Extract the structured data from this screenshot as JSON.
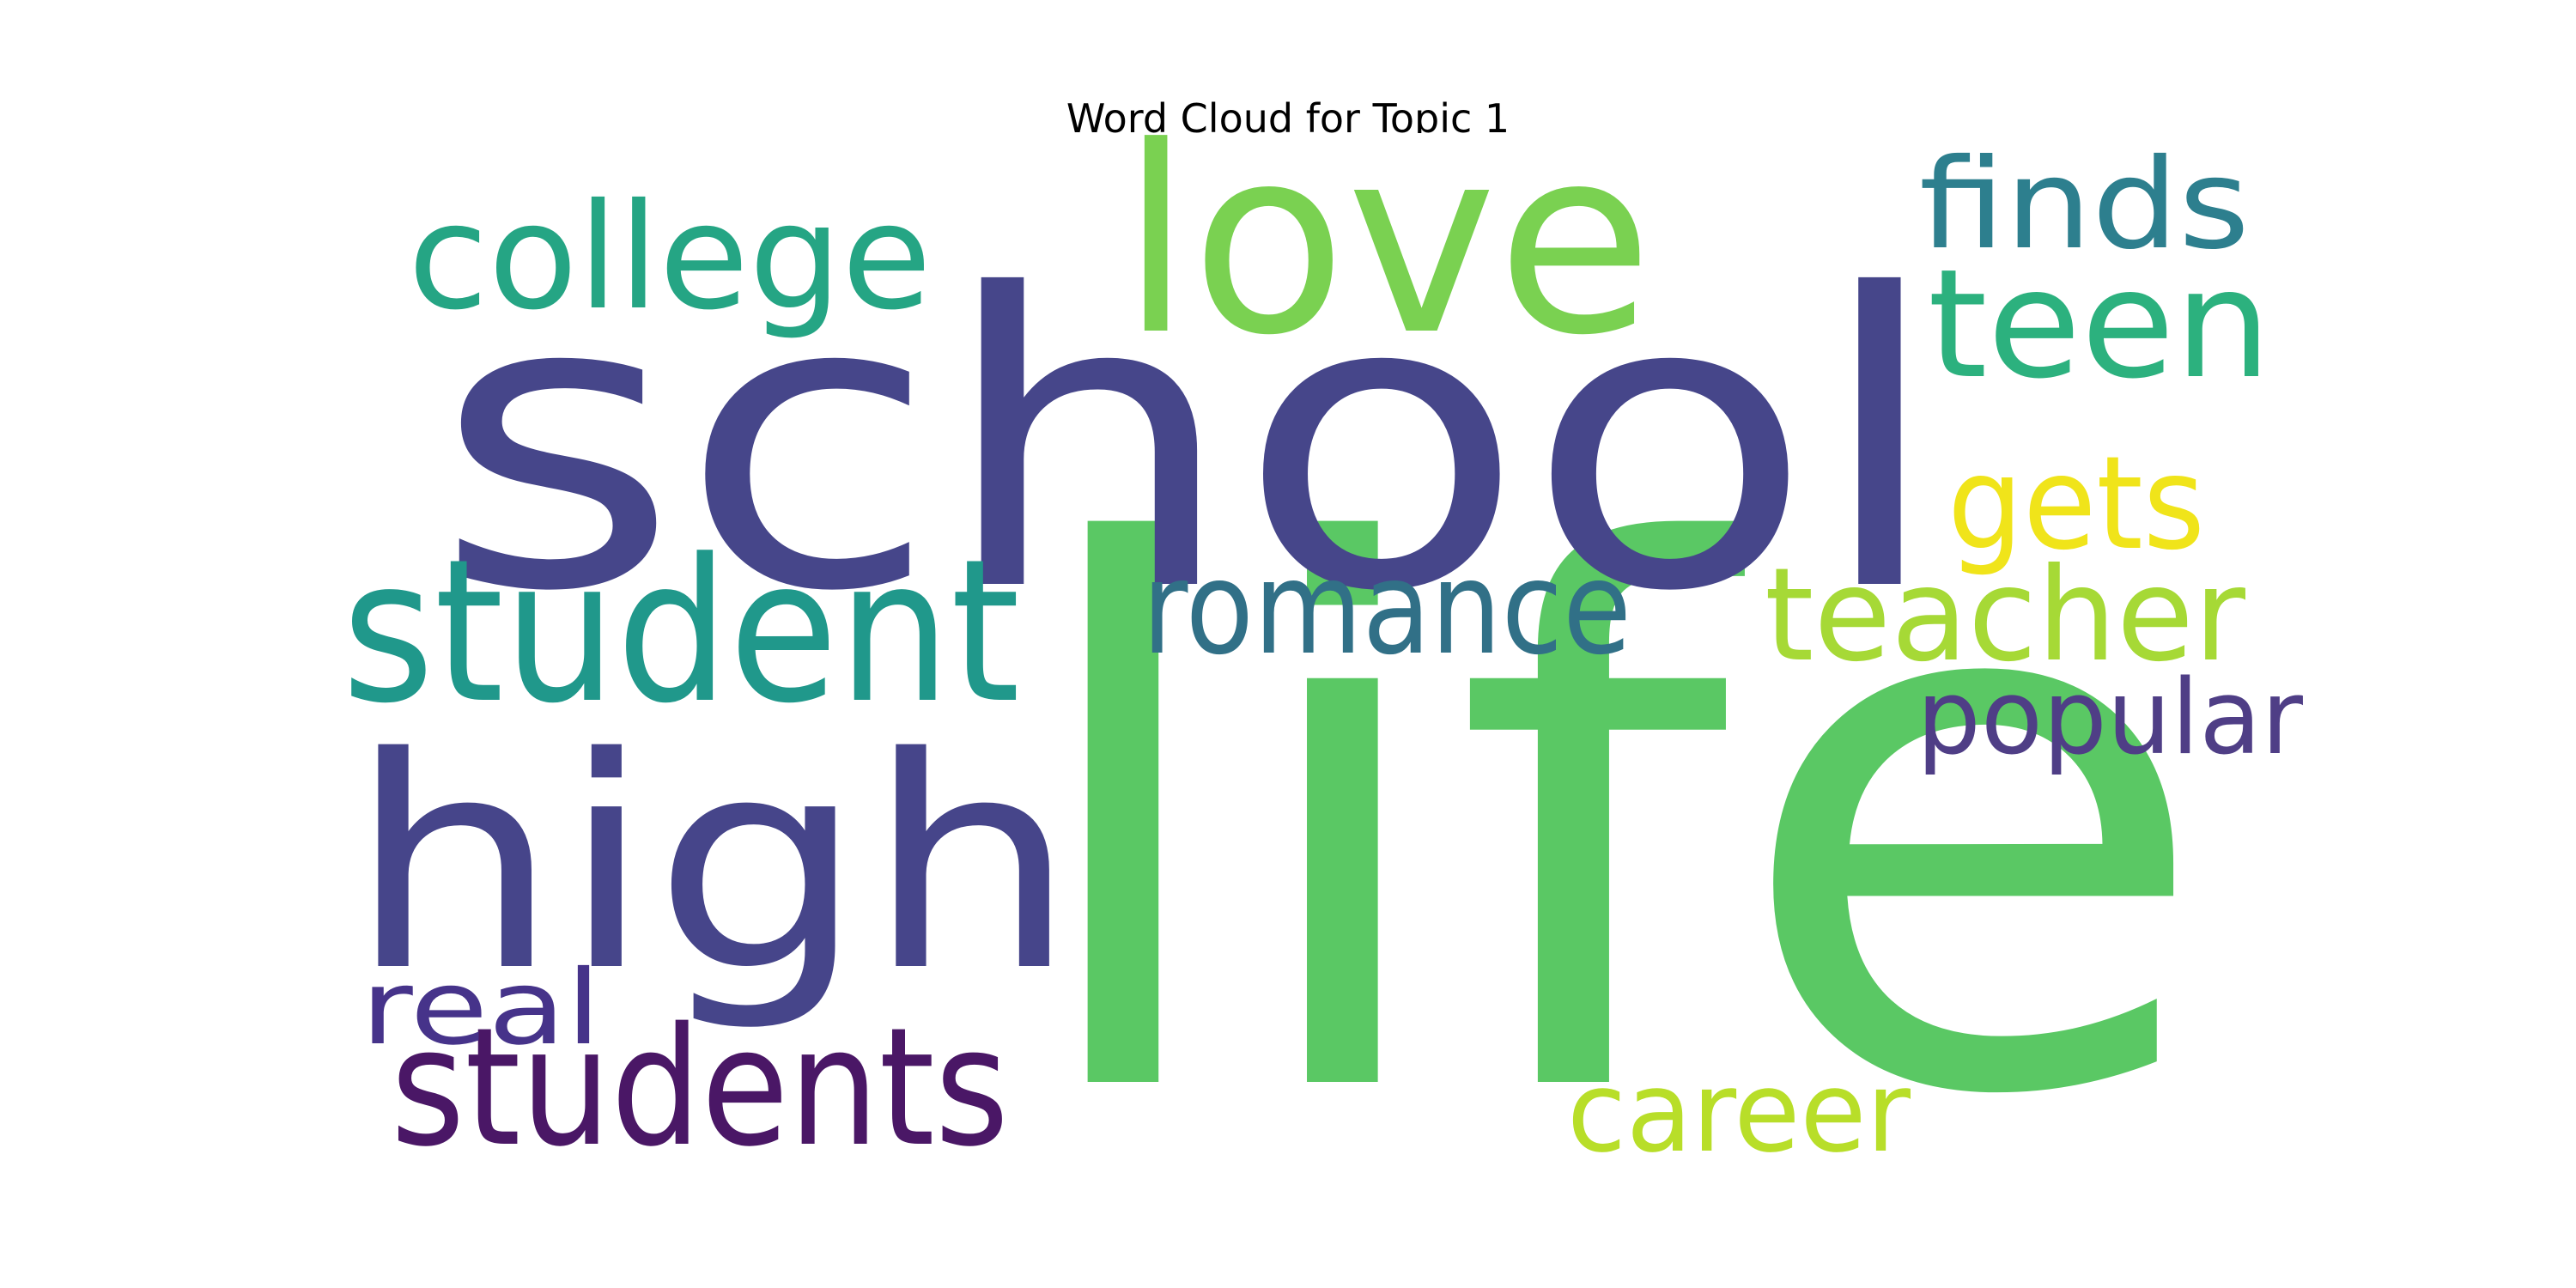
{
  "chart_data": {
    "type": "wordcloud",
    "title": "Word Cloud for Topic 1",
    "words": [
      {
        "text": "life",
        "weight": 1.0,
        "color": "#5ac864"
      },
      {
        "text": "school",
        "weight": 0.93,
        "color": "#46468a"
      },
      {
        "text": "high",
        "weight": 0.61,
        "color": "#46458a"
      },
      {
        "text": "love",
        "weight": 0.5,
        "color": "#7ad151"
      },
      {
        "text": "student",
        "weight": 0.41,
        "color": "#20988b"
      },
      {
        "text": "students",
        "weight": 0.33,
        "color": "#4a1766"
      },
      {
        "text": "college",
        "weight": 0.31,
        "color": "#25a584"
      },
      {
        "text": "teen",
        "weight": 0.31,
        "color": "#2cb17e"
      },
      {
        "text": "romance",
        "weight": 0.28,
        "color": "#317087"
      },
      {
        "text": "teacher",
        "weight": 0.28,
        "color": "#a6d936"
      },
      {
        "text": "finds",
        "weight": 0.26,
        "color": "#2d7f8e"
      },
      {
        "text": "gets",
        "weight": 0.26,
        "color": "#f0e41a"
      },
      {
        "text": "popular",
        "weight": 0.23,
        "color": "#4f3e86"
      },
      {
        "text": "career",
        "weight": 0.23,
        "color": "#b8de29"
      },
      {
        "text": "real",
        "weight": 0.22,
        "color": "#46338a"
      }
    ]
  }
}
